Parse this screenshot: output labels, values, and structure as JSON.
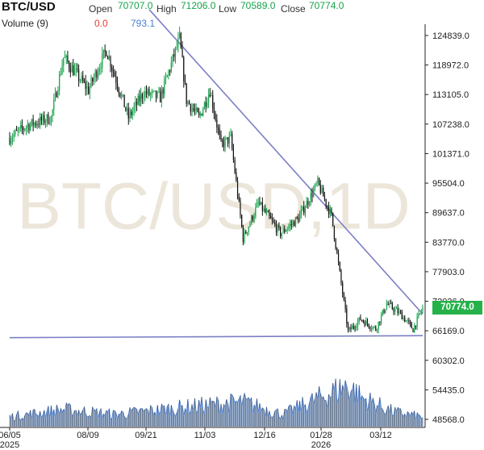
{
  "header": {
    "symbol": "BTC/USD",
    "open_label": "Open",
    "open_value": "70707.0",
    "high_label": "High",
    "high_value": "71206.0",
    "low_label": "Low",
    "low_value": "70589.0",
    "close_label": "Close",
    "close_value": "70774.0",
    "volume_label": "Volume (9)",
    "volume_value_1": "0.0",
    "volume_value_2": "793.1"
  },
  "watermark": "BTC/USD,1D",
  "last_price_tag": "70774.0",
  "colors": {
    "up": "#16a34a",
    "down": "#111111",
    "trendline": "#7b7fc4",
    "volume_fill": "#a9c4ea",
    "volume_line": "#4a7fd6",
    "price_tag": "#26b24a"
  },
  "chart_data": {
    "type": "candlestick",
    "title": "BTC/USD",
    "y_ticks": [
      "124839.0",
      "118972.0",
      "113105.0",
      "107238.0",
      "101371.0",
      "95504.0",
      "89637.0",
      "83770.0",
      "77903.0",
      "72036.0",
      "66169.0",
      "60302.0",
      "54435.0",
      "48568.0"
    ],
    "x_ticks": [
      {
        "label": "06/05",
        "sub": "2025"
      },
      {
        "label": "08/09",
        "sub": ""
      },
      {
        "label": "09/21",
        "sub": ""
      },
      {
        "label": "11/03",
        "sub": ""
      },
      {
        "label": "12/16",
        "sub": ""
      },
      {
        "label": "01/28",
        "sub": "2026"
      },
      {
        "label": "03/12",
        "sub": ""
      }
    ],
    "price_anchors": [
      [
        "2025-06-05",
        104500
      ],
      [
        "2025-06-18",
        107000
      ],
      [
        "2025-07-05",
        108500
      ],
      [
        "2025-07-14",
        120500
      ],
      [
        "2025-08-01",
        114000
      ],
      [
        "2025-08-14",
        122000
      ],
      [
        "2025-08-30",
        108500
      ],
      [
        "2025-09-10",
        113500
      ],
      [
        "2025-09-22",
        112500
      ],
      [
        "2025-10-06",
        124200
      ],
      [
        "2025-10-11",
        112000
      ],
      [
        "2025-10-20",
        108500
      ],
      [
        "2025-10-28",
        114000
      ],
      [
        "2025-11-05",
        103000
      ],
      [
        "2025-11-12",
        104500
      ],
      [
        "2025-11-21",
        84500
      ],
      [
        "2025-12-02",
        91500
      ],
      [
        "2025-12-18",
        85500
      ],
      [
        "2025-12-31",
        88500
      ],
      [
        "2026-01-14",
        95500
      ],
      [
        "2026-01-24",
        89000
      ],
      [
        "2026-02-05",
        66000
      ],
      [
        "2026-02-14",
        68500
      ],
      [
        "2026-02-25",
        66500
      ],
      [
        "2026-03-05",
        71500
      ],
      [
        "2026-03-15",
        69500
      ],
      [
        "2026-03-24",
        66500
      ],
      [
        "2026-03-31",
        70700
      ]
    ],
    "volume_anchors": [
      [
        "2025-06-05",
        20
      ],
      [
        "2025-07-14",
        35
      ],
      [
        "2025-08-20",
        25
      ],
      [
        "2025-10-11",
        40
      ],
      [
        "2025-11-21",
        50
      ],
      [
        "2025-12-20",
        25
      ],
      [
        "2026-02-05",
        85
      ],
      [
        "2026-02-14",
        60
      ],
      [
        "2026-03-10",
        30
      ],
      [
        "2026-03-31",
        20
      ]
    ],
    "trendlines": [
      {
        "name": "resistance",
        "from": [
          "2025-09-14",
          130000
        ],
        "to": [
          "2026-03-31",
          69500
        ]
      },
      {
        "name": "support",
        "from": [
          "2025-06-05",
          64800
        ],
        "to": [
          "2026-03-31",
          65200
        ]
      }
    ]
  }
}
